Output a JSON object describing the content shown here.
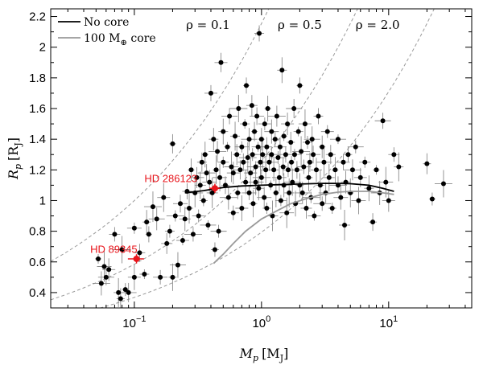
{
  "chart_data": {
    "type": "scatter",
    "xlabel": {
      "main": "M",
      "sub": "p",
      "unit": "[M",
      "unit_sub": "J",
      "close": "]"
    },
    "ylabel": {
      "main": "R",
      "sub": "p",
      "unit": "[R",
      "unit_sub": "J",
      "close": "]"
    },
    "x_scale": "log",
    "xlim": [
      0.022,
      45
    ],
    "ylim": [
      0.3,
      2.25
    ],
    "x_ticks": [
      {
        "value": 0.1,
        "base": "10",
        "exp": "−1"
      },
      {
        "value": 1,
        "base": "10",
        "exp": "0"
      },
      {
        "value": 10,
        "base": "10",
        "exp": "1"
      }
    ],
    "y_ticks": [
      "0.4",
      "0.6",
      "0.8",
      "1",
      "1.2",
      "1.4",
      "1.6",
      "1.8",
      "2",
      "2.2"
    ],
    "grid": false,
    "legend": {
      "placement": "top-left",
      "entries": [
        {
          "label": "No core",
          "color": "#000000"
        },
        {
          "label": "100 M",
          "sub": "⊕",
          "suffix": " core",
          "color": "#9a9a9a"
        }
      ]
    },
    "density_labels": [
      {
        "rho": 0.1,
        "text": "ρ = 0.1",
        "label_x": 0.38
      },
      {
        "rho": 0.5,
        "text": "ρ = 0.5",
        "label_x": 2.0
      },
      {
        "rho": 2.0,
        "text": "ρ = 2.0",
        "label_x": 8.2
      }
    ],
    "highlighted": [
      {
        "name": "HD 286123",
        "x": 0.43,
        "y": 1.08,
        "xerr": 0.04,
        "yerr": 0.03,
        "color": "#e8141b",
        "label_x": 0.12,
        "label_y": 1.12
      },
      {
        "name": "HD 89345",
        "x": 0.104,
        "y": 0.62,
        "xerr": 0.015,
        "yerr": 0.03,
        "color": "#e8141b",
        "label_x": 0.045,
        "label_y": 0.66
      }
    ],
    "model_curves": [
      {
        "name": "No core",
        "color": "#000000",
        "points": [
          [
            0.25,
            1.05
          ],
          [
            0.35,
            1.065
          ],
          [
            0.5,
            1.085
          ],
          [
            0.7,
            1.095
          ],
          [
            1,
            1.1
          ],
          [
            1.5,
            1.105
          ],
          [
            2,
            1.108
          ],
          [
            3,
            1.112
          ],
          [
            4,
            1.112
          ],
          [
            5,
            1.11
          ],
          [
            7,
            1.1
          ],
          [
            9,
            1.08
          ],
          [
            11,
            1.06
          ]
        ]
      },
      {
        "name": "100 M⊕ core",
        "color": "#9a9a9a",
        "points": [
          [
            0.42,
            0.59
          ],
          [
            0.5,
            0.65
          ],
          [
            0.6,
            0.72
          ],
          [
            0.75,
            0.8
          ],
          [
            1,
            0.88
          ],
          [
            1.3,
            0.93
          ],
          [
            1.7,
            0.98
          ],
          [
            2.2,
            1.01
          ],
          [
            3,
            1.04
          ],
          [
            4,
            1.055
          ],
          [
            5,
            1.06
          ],
          [
            7,
            1.06
          ],
          [
            9,
            1.05
          ],
          [
            11,
            1.04
          ]
        ]
      }
    ],
    "planets": [
      [
        0.052,
        0.62
      ],
      [
        0.055,
        0.46
      ],
      [
        0.06,
        0.5
      ],
      [
        0.058,
        0.57
      ],
      [
        0.063,
        0.55
      ],
      [
        0.07,
        0.78
      ],
      [
        0.075,
        0.4
      ],
      [
        0.078,
        0.36
      ],
      [
        0.085,
        0.42
      ],
      [
        0.08,
        0.68
      ],
      [
        0.09,
        0.4
      ],
      [
        0.1,
        0.82
      ],
      [
        0.1,
        0.5
      ],
      [
        0.11,
        0.66
      ],
      [
        0.12,
        0.52
      ],
      [
        0.125,
        0.86
      ],
      [
        0.13,
        0.78
      ],
      [
        0.14,
        0.96
      ],
      [
        0.15,
        0.88
      ],
      [
        0.16,
        0.5
      ],
      [
        0.17,
        1.02
      ],
      [
        0.18,
        0.72
      ],
      [
        0.19,
        0.8
      ],
      [
        0.2,
        0.5
      ],
      [
        0.2,
        1.37
      ],
      [
        0.21,
        0.9
      ],
      [
        0.22,
        0.58
      ],
      [
        0.23,
        0.98
      ],
      [
        0.24,
        0.74
      ],
      [
        0.25,
        0.88
      ],
      [
        0.26,
        1.06
      ],
      [
        0.27,
        0.95
      ],
      [
        0.28,
        1.2
      ],
      [
        0.29,
        0.78
      ],
      [
        0.3,
        1.05
      ],
      [
        0.31,
        1.15
      ],
      [
        0.32,
        0.9
      ],
      [
        0.33,
        1.1
      ],
      [
        0.34,
        1.25
      ],
      [
        0.35,
        1.0
      ],
      [
        0.36,
        1.3
      ],
      [
        0.37,
        1.18
      ],
      [
        0.38,
        0.84
      ],
      [
        0.39,
        1.12
      ],
      [
        0.4,
        1.7
      ],
      [
        0.41,
        1.05
      ],
      [
        0.42,
        1.4
      ],
      [
        0.43,
        0.68
      ],
      [
        0.44,
        1.2
      ],
      [
        0.45,
        1.32
      ],
      [
        0.46,
        0.8
      ],
      [
        0.47,
        1.15
      ],
      [
        0.48,
        1.9
      ],
      [
        0.5,
        1.25
      ],
      [
        0.5,
        1.45
      ],
      [
        0.52,
        1.1
      ],
      [
        0.54,
        1.35
      ],
      [
        0.55,
        1.02
      ],
      [
        0.56,
        1.55
      ],
      [
        0.58,
        1.22
      ],
      [
        0.6,
        1.18
      ],
      [
        0.6,
        0.92
      ],
      [
        0.62,
        1.42
      ],
      [
        0.64,
        1.3
      ],
      [
        0.65,
        1.05
      ],
      [
        0.66,
        1.6
      ],
      [
        0.68,
        1.2
      ],
      [
        0.7,
        1.35
      ],
      [
        0.7,
        0.95
      ],
      [
        0.72,
        1.25
      ],
      [
        0.74,
        1.5
      ],
      [
        0.75,
        1.12
      ],
      [
        0.76,
        1.75
      ],
      [
        0.78,
        1.28
      ],
      [
        0.8,
        1.4
      ],
      [
        0.8,
        1.05
      ],
      [
        0.82,
        1.18
      ],
      [
        0.84,
        1.62
      ],
      [
        0.85,
        1.3
      ],
      [
        0.86,
        0.98
      ],
      [
        0.88,
        1.45
      ],
      [
        0.9,
        1.22
      ],
      [
        0.9,
        1.12
      ],
      [
        0.92,
        1.55
      ],
      [
        0.94,
        1.35
      ],
      [
        0.95,
        1.08
      ],
      [
        0.96,
        2.09
      ],
      [
        0.98,
        1.25
      ],
      [
        1.0,
        1.4
      ],
      [
        1.0,
        1.15
      ],
      [
        1.02,
        1.3
      ],
      [
        1.05,
        1.02
      ],
      [
        1.06,
        1.5
      ],
      [
        1.08,
        1.2
      ],
      [
        1.1,
        1.35
      ],
      [
        1.1,
        0.95
      ],
      [
        1.12,
        1.6
      ],
      [
        1.15,
        1.25
      ],
      [
        1.18,
        1.1
      ],
      [
        1.2,
        1.45
      ],
      [
        1.2,
        1.3
      ],
      [
        1.22,
        0.9
      ],
      [
        1.25,
        1.2
      ],
      [
        1.28,
        1.4
      ],
      [
        1.3,
        1.05
      ],
      [
        1.32,
        1.55
      ],
      [
        1.35,
        1.28
      ],
      [
        1.38,
        1.15
      ],
      [
        1.4,
        1.35
      ],
      [
        1.42,
        1.0
      ],
      [
        1.45,
        1.85
      ],
      [
        1.48,
        1.22
      ],
      [
        1.5,
        1.42
      ],
      [
        1.5,
        1.1
      ],
      [
        1.55,
        1.3
      ],
      [
        1.58,
        0.92
      ],
      [
        1.6,
        1.5
      ],
      [
        1.62,
        1.2
      ],
      [
        1.65,
        1.05
      ],
      [
        1.7,
        1.38
      ],
      [
        1.72,
        1.25
      ],
      [
        1.75,
        1.12
      ],
      [
        1.8,
        1.6
      ],
      [
        1.82,
        1.3
      ],
      [
        1.85,
        0.98
      ],
      [
        1.9,
        1.2
      ],
      [
        1.95,
        1.45
      ],
      [
        2.0,
        1.1
      ],
      [
        2.0,
        1.75
      ],
      [
        2.05,
        1.32
      ],
      [
        2.1,
        1.05
      ],
      [
        2.15,
        1.22
      ],
      [
        2.2,
        1.5
      ],
      [
        2.25,
        0.95
      ],
      [
        2.3,
        1.38
      ],
      [
        2.35,
        1.15
      ],
      [
        2.4,
        1.25
      ],
      [
        2.45,
        1.02
      ],
      [
        2.5,
        1.4
      ],
      [
        2.55,
        1.3
      ],
      [
        2.6,
        0.9
      ],
      [
        2.7,
        1.2
      ],
      [
        2.8,
        1.55
      ],
      [
        2.9,
        1.1
      ],
      [
        3.0,
        1.35
      ],
      [
        3.0,
        0.98
      ],
      [
        3.1,
        1.25
      ],
      [
        3.2,
        1.05
      ],
      [
        3.3,
        1.45
      ],
      [
        3.4,
        1.15
      ],
      [
        3.5,
        1.3
      ],
      [
        3.6,
        0.95
      ],
      [
        3.8,
        1.2
      ],
      [
        4.0,
        1.1
      ],
      [
        4.0,
        1.4
      ],
      [
        4.2,
        1.02
      ],
      [
        4.4,
        1.25
      ],
      [
        4.5,
        0.84
      ],
      [
        4.6,
        1.12
      ],
      [
        4.8,
        1.3
      ],
      [
        5.0,
        1.05
      ],
      [
        5.2,
        1.2
      ],
      [
        5.5,
        1.35
      ],
      [
        5.8,
        1.0
      ],
      [
        6.0,
        1.15
      ],
      [
        6.5,
        1.25
      ],
      [
        7.0,
        1.08
      ],
      [
        7.5,
        0.86
      ],
      [
        8.0,
        1.2
      ],
      [
        8.5,
        1.05
      ],
      [
        9.0,
        1.52
      ],
      [
        9.5,
        1.12
      ],
      [
        10.0,
        1.0
      ],
      [
        11.0,
        1.3
      ],
      [
        12.0,
        1.22
      ],
      [
        20.0,
        1.24
      ],
      [
        22.0,
        1.01
      ],
      [
        27.0,
        1.11
      ]
    ]
  }
}
